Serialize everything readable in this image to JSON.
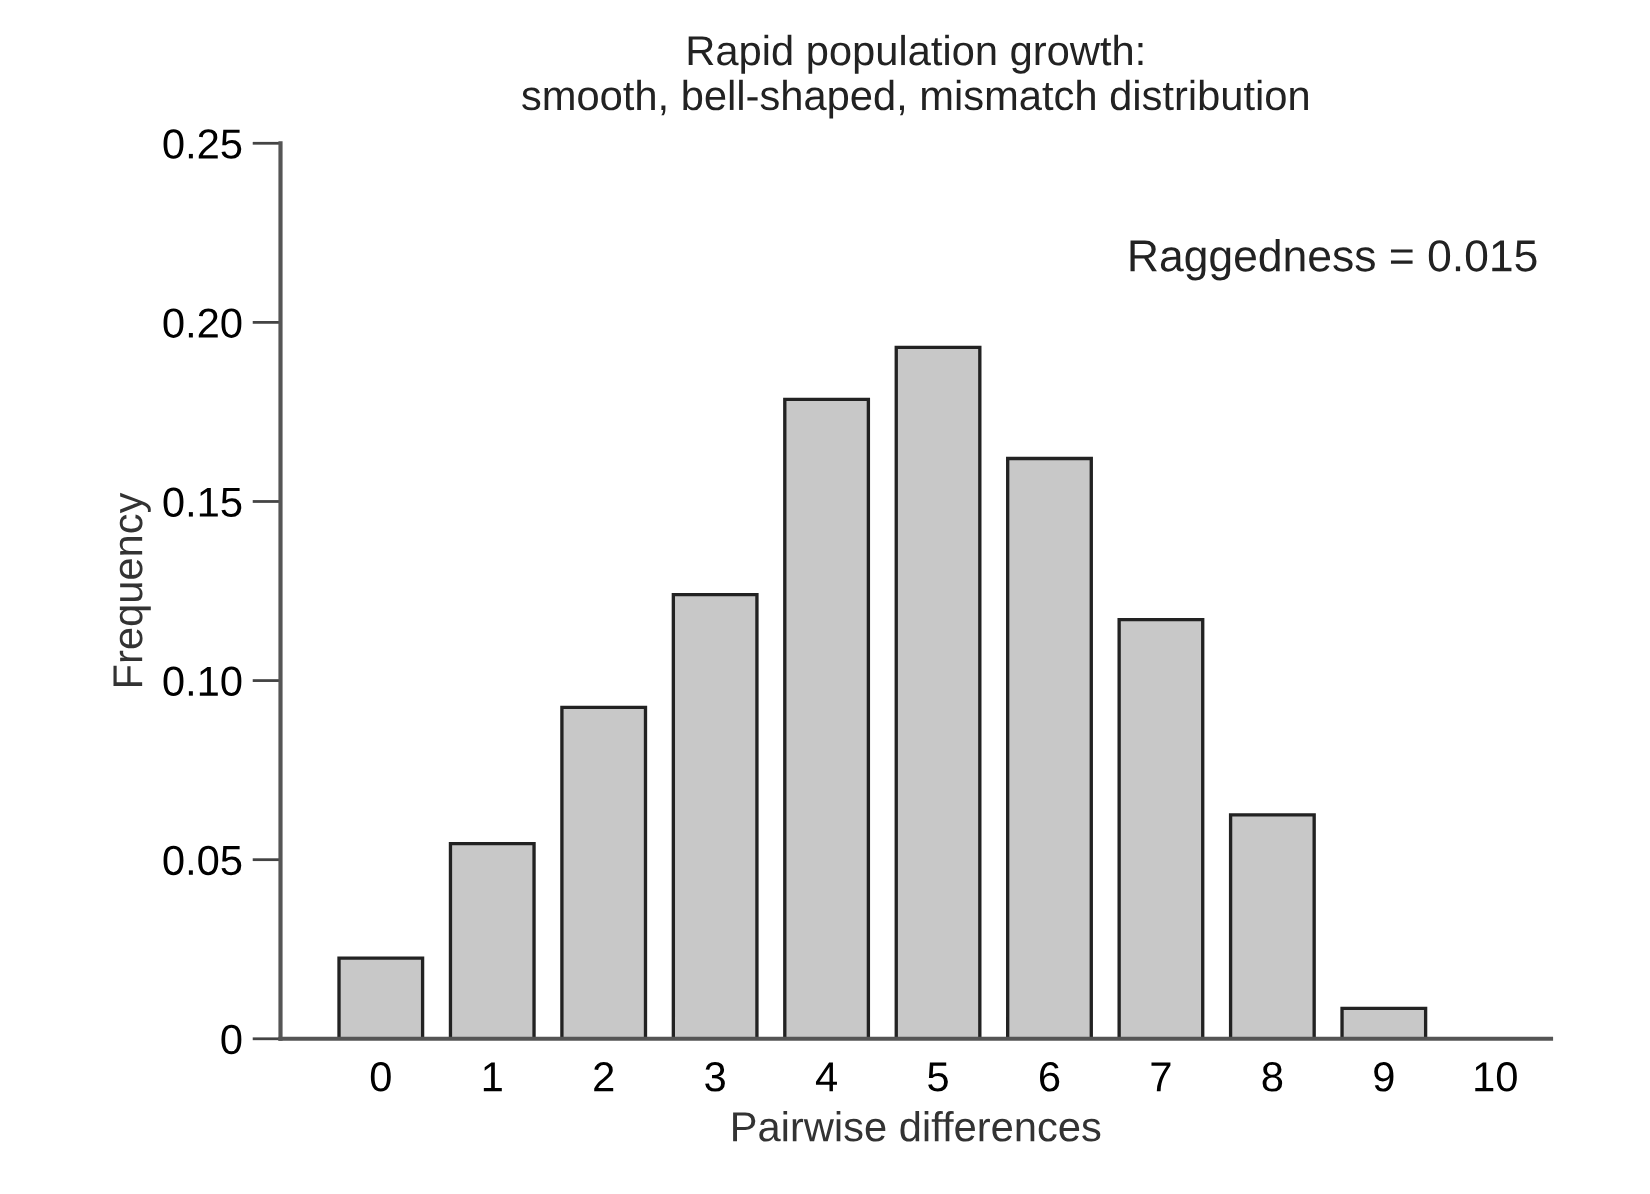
{
  "chart_data": {
    "type": "bar",
    "title": "Rapid population growth:\nsmooth, bell-shaped, mismatch distribution",
    "xlabel": "Pairwise differences",
    "ylabel": "Frequency",
    "categories": [
      "0",
      "1",
      "2",
      "3",
      "4",
      "5",
      "6",
      "7",
      "8",
      "9",
      "10"
    ],
    "values": [
      0.0225,
      0.0545,
      0.0925,
      0.124,
      0.1785,
      0.193,
      0.162,
      0.117,
      0.0625,
      0.0085,
      0
    ],
    "color": "#c8c8c8",
    "ylim": [
      0,
      0.25
    ],
    "yticks": [
      0,
      {
        "value": 0.05,
        "label": "0.05"
      },
      {
        "value": 0.1,
        "label": "0.10"
      },
      {
        "value": 0.15,
        "label": "0.15"
      },
      {
        "value": 0.2,
        "label": "0.20"
      },
      {
        "value": 0.25,
        "label": "0.25"
      }
    ],
    "annotations": [
      "Raggedness = 0.015"
    ],
    "grid": false
  }
}
